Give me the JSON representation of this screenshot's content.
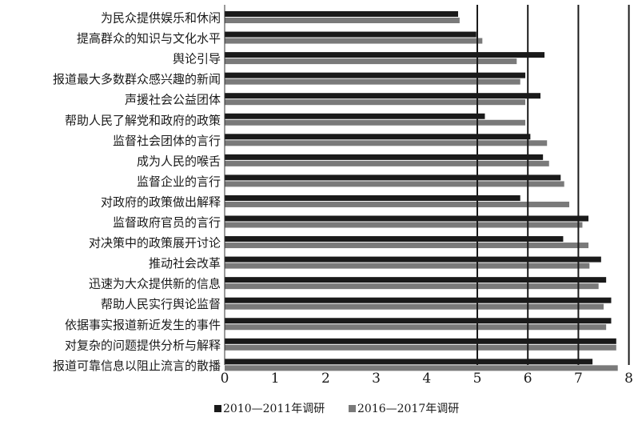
{
  "chart_data": {
    "type": "bar",
    "orientation": "horizontal",
    "title": "",
    "xlabel": "",
    "ylabel": "",
    "xlim": [
      0,
      8
    ],
    "x_ticks": [
      "0",
      "1",
      "2",
      "3",
      "4",
      "5",
      "6",
      "7",
      "8"
    ],
    "grid": "vertical lines at 5, 6, 7, 8",
    "legend_position": "bottom",
    "categories": [
      "为民众提供娱乐和休闲",
      "提高群众的知识与文化水平",
      "舆论引导",
      "报道最大多数群众感兴趣的新闻",
      "声援社会公益团体",
      "帮助人民了解党和政府的政策",
      "监督社会团体的言行",
      "成为人民的喉舌",
      "监督企业的言行",
      "对政府的政策做出解释",
      "监督政府官员的言行",
      "对决策中的政策展开讨论",
      "推动社会改革",
      "迅速为大众提供新的信息",
      "帮助人民实行舆论监督",
      "依据事实报道新近发生的事件",
      "对复杂的问题提供分析与解释",
      "报道可靠信息以阻止流言的散播"
    ],
    "series": [
      {
        "name": "2010—2011年调研",
        "color": "#1a1a1a",
        "values": [
          4.62,
          4.98,
          6.33,
          5.95,
          6.25,
          5.15,
          6.05,
          6.3,
          6.65,
          5.85,
          7.2,
          6.7,
          7.45,
          7.55,
          7.65,
          7.65,
          7.75,
          7.28
        ]
      },
      {
        "name": "2016—2017年调研",
        "color": "#7a7a7a",
        "values": [
          4.65,
          5.1,
          5.78,
          5.85,
          5.95,
          5.95,
          6.38,
          6.42,
          6.72,
          6.82,
          7.08,
          7.2,
          7.22,
          7.4,
          7.5,
          7.55,
          7.75,
          7.78
        ]
      }
    ]
  }
}
